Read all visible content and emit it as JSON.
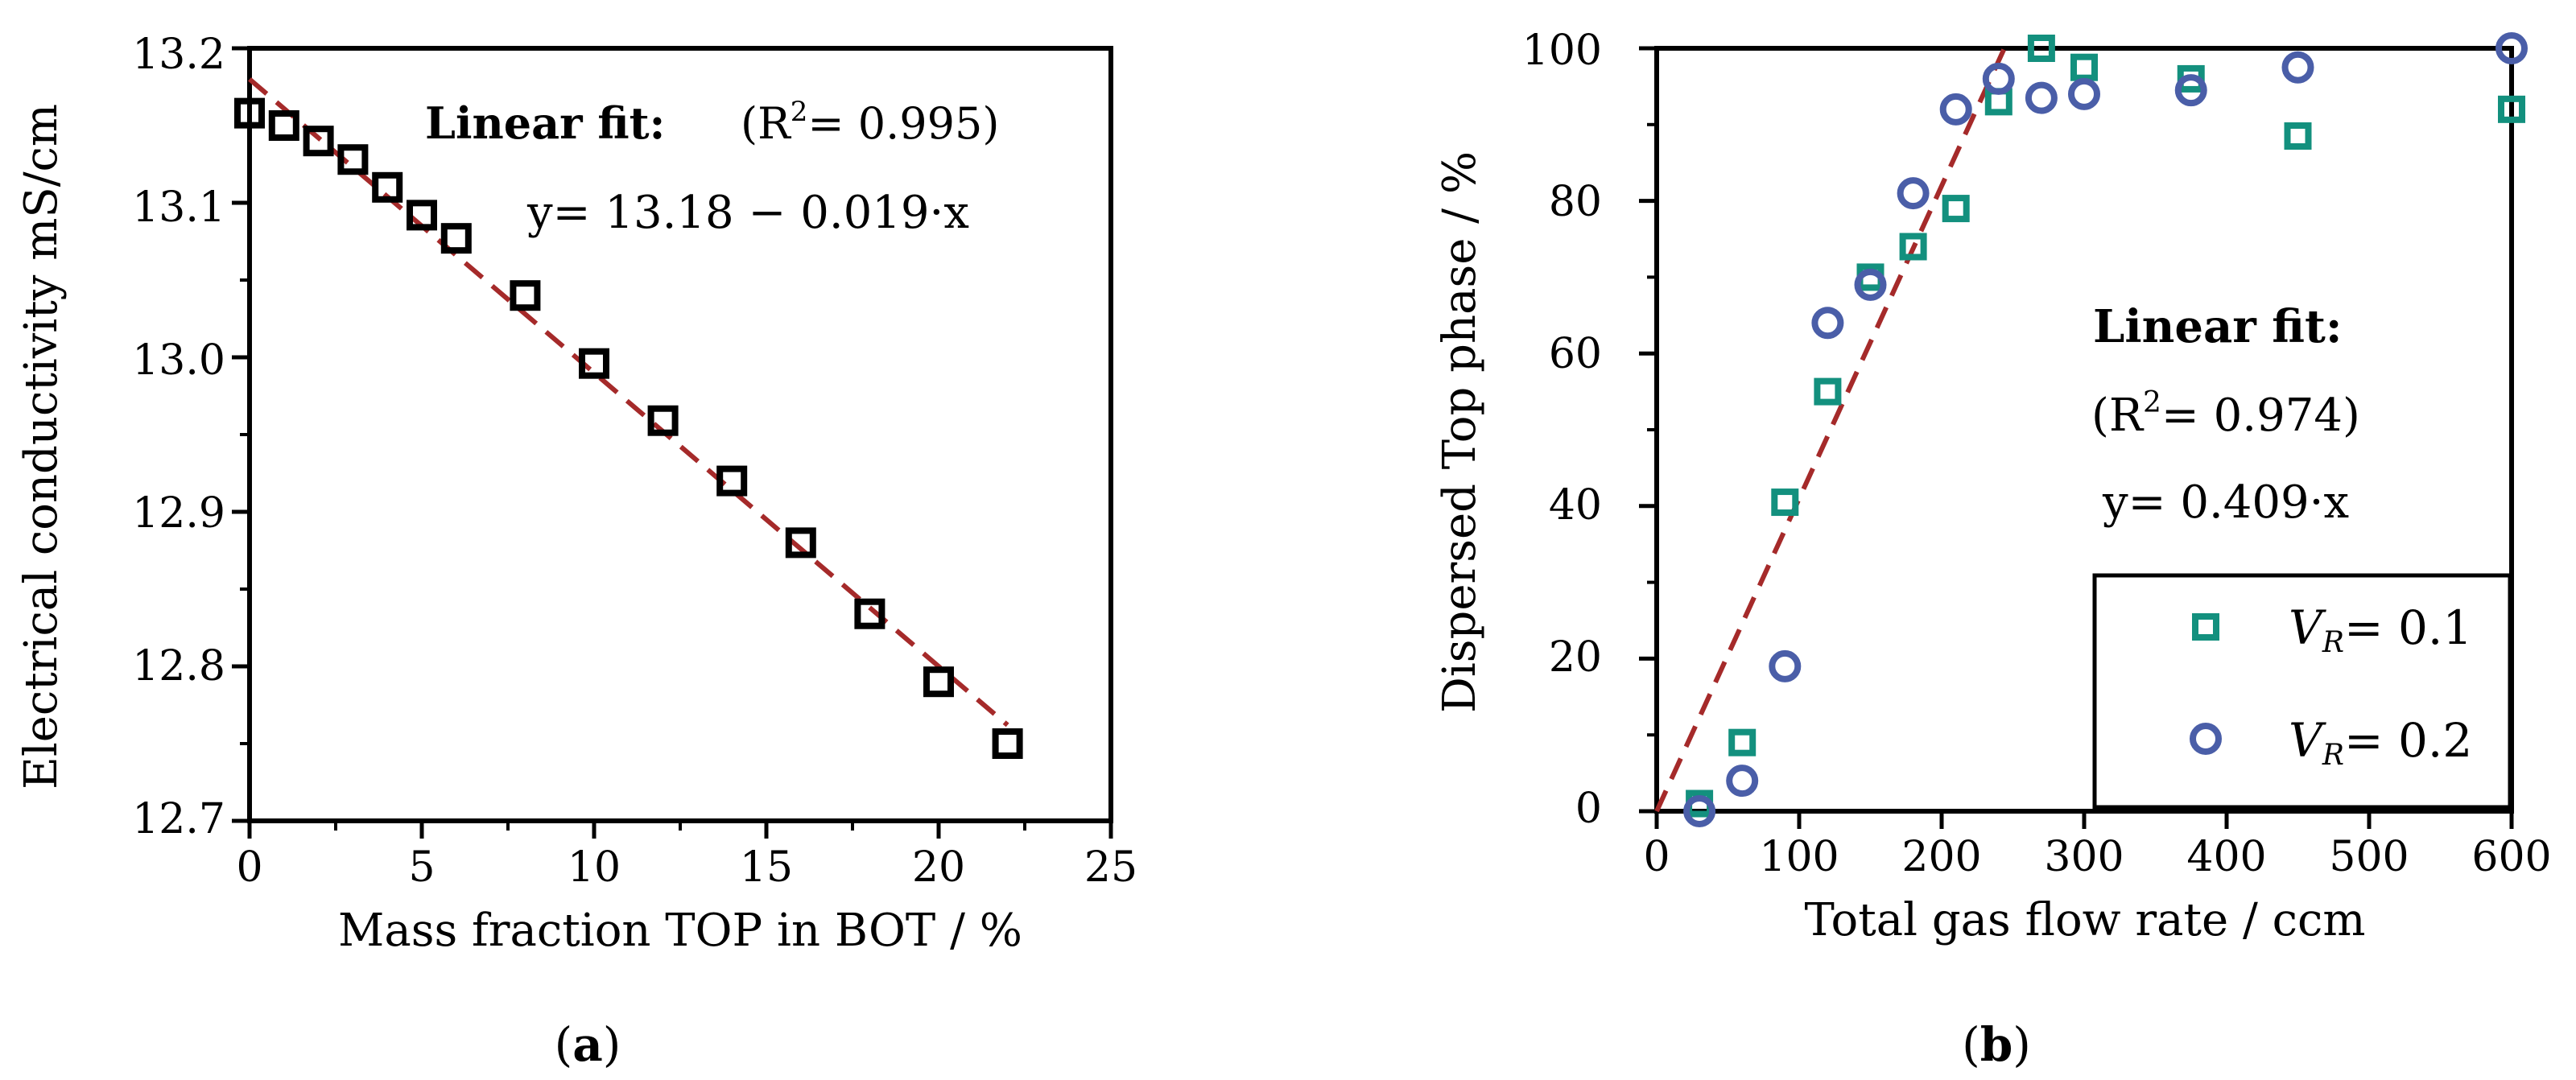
{
  "chart_data": [
    {
      "type": "scatter",
      "panel_label_parts": [
        "(",
        "a",
        ")"
      ],
      "xlabel": "Mass fraction TOP in BOT / %",
      "ylabel": "Electrical conductivity mS/cm",
      "xlim": [
        0,
        25
      ],
      "ylim": [
        12.7,
        13.2
      ],
      "x_ticks": [
        0,
        5,
        10,
        15,
        20,
        25
      ],
      "y_ticks": [
        12.7,
        12.8,
        12.9,
        13.0,
        13.1,
        13.2
      ],
      "y_tick_labels": [
        "12.7",
        "12.8",
        "12.9",
        "13.0",
        "13.1",
        "13.2"
      ],
      "series": [
        {
          "name": "Conductivity",
          "marker": "square",
          "color": "#000000",
          "x": [
            0,
            1,
            2,
            3,
            4,
            5,
            6,
            8,
            10,
            12,
            14,
            16,
            18,
            20,
            22
          ],
          "y": [
            13.158,
            13.15,
            13.14,
            13.128,
            13.11,
            13.092,
            13.077,
            13.04,
            12.996,
            12.959,
            12.92,
            12.88,
            12.834,
            12.79,
            12.75
          ]
        }
      ],
      "fit": {
        "color": "#a52a2a",
        "x": [
          0,
          22
        ],
        "y": [
          13.18,
          12.762
        ],
        "label": "Linear fit:",
        "r2_open": "(R",
        "r2_sup": "2",
        "r2_close": "= 0.995)",
        "equation": "y= 13.18 − 0.019·x"
      }
    },
    {
      "type": "scatter",
      "panel_label_parts": [
        "(",
        "b",
        ")"
      ],
      "xlabel": "Total gas flow rate / ccm",
      "ylabel": "Dispersed Top phase / %",
      "xlim": [
        0,
        600
      ],
      "ylim": [
        0,
        100
      ],
      "x_ticks": [
        0,
        100,
        200,
        300,
        400,
        500,
        600
      ],
      "y_ticks": [
        0,
        20,
        40,
        60,
        80,
        100
      ],
      "y_tick_labels": [
        "0",
        "20",
        "40",
        "60",
        "80",
        "100"
      ],
      "series": [
        {
          "name": "VR= 0.1",
          "legend_var": "V",
          "legend_sub": "R",
          "legend_value": "= 0.1",
          "marker": "square",
          "color": "#13907e",
          "x": [
            30,
            60,
            90,
            120,
            150,
            180,
            210,
            240,
            270,
            300,
            375,
            450,
            600
          ],
          "y": [
            1,
            9,
            40.5,
            55,
            70,
            74,
            79,
            93,
            100,
            97.5,
            96,
            88.5,
            92
          ]
        },
        {
          "name": "VR= 0.2",
          "legend_var": "V",
          "legend_sub": "R",
          "legend_value": "= 0.2",
          "marker": "circle",
          "color": "#4a5ea8",
          "x": [
            30,
            60,
            90,
            120,
            150,
            180,
            210,
            240,
            270,
            300,
            375,
            450,
            600
          ],
          "y": [
            0,
            4,
            19,
            64,
            69,
            81,
            92,
            96,
            93.5,
            94,
            94.5,
            97.5,
            100
          ]
        }
      ],
      "fit": {
        "color": "#a52a2a",
        "x": [
          0,
          244
        ],
        "y": [
          0,
          100
        ],
        "label": "Linear fit:",
        "r2_open": "(R",
        "r2_sup": "2",
        "r2_close": "= 0.974)",
        "equation": "y= 0.409·x"
      }
    }
  ]
}
